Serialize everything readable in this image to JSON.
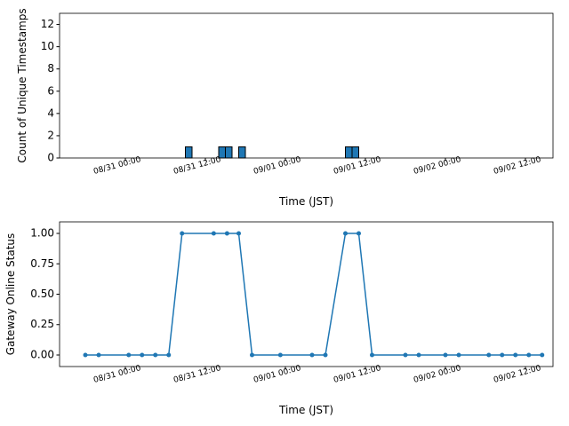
{
  "chart_data": [
    {
      "type": "histogram",
      "xlabel": "Time (JST)",
      "ylabel": "Count of Unique Timestamps",
      "bins": [
        "08/30 15:00",
        "08/31 09:00",
        "08/31 10:00",
        "08/31 14:00",
        "08/31 15:00",
        "08/31 16:00",
        "08/31 17:00",
        "08/31 18:00",
        "09/01 09:00",
        "09/01 10:00",
        "09/01 11:00",
        "09/02 14:00"
      ],
      "values": [
        0,
        1,
        0,
        1,
        1,
        0,
        1,
        0,
        1,
        1,
        0
      ],
      "color": "#1f77b4",
      "edgecolor": "#000000",
      "xlim": [
        "08/30 14:08",
        "09/02 16:08"
      ],
      "xticks": [
        "08/31 00:00",
        "08/31 12:00",
        "09/01 00:00",
        "09/01 12:00",
        "09/02 00:00",
        "09/02 12:00"
      ],
      "ylim": [
        0,
        13
      ],
      "yticks": [
        0,
        2,
        4,
        6,
        8,
        10,
        12
      ]
    },
    {
      "type": "line",
      "xlabel": "Time (JST)",
      "ylabel": "Gateway Online Status",
      "x": [
        "08/30 18:00",
        "08/30 20:00",
        "08/31 00:30",
        "08/31 02:30",
        "08/31 04:30",
        "08/31 06:30",
        "08/31 08:30",
        "08/31 13:15",
        "08/31 15:15",
        "08/31 17:00",
        "08/31 19:00",
        "08/31 23:15",
        "09/01 04:00",
        "09/01 06:00",
        "09/01 09:00",
        "09/01 11:00",
        "09/01 13:00",
        "09/01 18:00",
        "09/01 20:00",
        "09/02 00:00",
        "09/02 02:00",
        "09/02 06:30",
        "09/02 08:30",
        "09/02 10:30",
        "09/02 12:30",
        "09/02 14:30"
      ],
      "values": [
        0,
        0,
        0,
        0,
        0,
        0,
        1,
        1,
        1,
        1,
        0,
        0,
        0,
        0,
        1,
        1,
        0,
        0,
        0,
        0,
        0,
        0,
        0,
        0,
        0,
        0
      ],
      "color": "#1f77b4",
      "xlim": [
        "08/30 14:08",
        "09/02 16:08"
      ],
      "xticks": [
        "08/31 00:00",
        "08/31 12:00",
        "09/01 00:00",
        "09/01 12:00",
        "09/02 00:00",
        "09/02 12:00"
      ],
      "ylim": [
        -0.095,
        1.095
      ],
      "yticks": [
        {
          "value": 0,
          "label": "0.00"
        },
        {
          "value": 0.25,
          "label": "0.25"
        },
        {
          "value": 0.5,
          "label": "0.50"
        },
        {
          "value": 0.75,
          "label": "0.75"
        },
        {
          "value": 1,
          "label": "1.00"
        }
      ]
    }
  ]
}
